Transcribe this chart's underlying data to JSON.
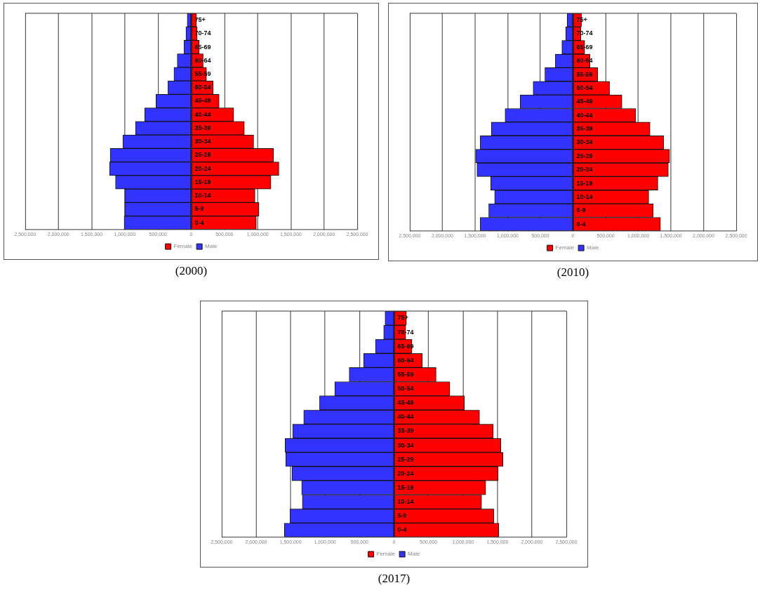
{
  "chart_data": [
    {
      "type": "bar",
      "title": "(2000)",
      "orientation": "horizontal",
      "stacked": true,
      "grid": "x",
      "legend": "bottom",
      "categories": [
        "75+",
        "70-74",
        "65-69",
        "60-64",
        "55-59",
        "50-54",
        "45-49",
        "40-44",
        "35-39",
        "30-34",
        "25-29",
        "20-24",
        "15-19",
        "10-14",
        "5-9",
        "0-4"
      ],
      "series": [
        {
          "name": "Female",
          "color": "#ff0000",
          "values": [
            80000,
            90000,
            120000,
            180000,
            230000,
            330000,
            420000,
            640000,
            800000,
            940000,
            1240000,
            1320000,
            1200000,
            960000,
            1020000,
            980000
          ]
        },
        {
          "name": "Male",
          "color": "#3333ff",
          "values": [
            -60000,
            -80000,
            -110000,
            -210000,
            -260000,
            -350000,
            -530000,
            -700000,
            -840000,
            -1030000,
            -1220000,
            -1230000,
            -1140000,
            -1000000,
            -1000000,
            -1010000
          ]
        }
      ],
      "xlim": [
        -2500000,
        2500000
      ],
      "xticks": [
        {
          "value": -2500000,
          "label": "2,500,000"
        },
        {
          "value": -2000000,
          "label": "2,000,000"
        },
        {
          "value": -1500000,
          "label": "1,500,000"
        },
        {
          "value": -1000000,
          "label": "1,000,000"
        },
        {
          "value": -500000,
          "label": "500,000"
        },
        {
          "value": 0,
          "label": "0"
        },
        {
          "value": 500000,
          "label": "500,000"
        },
        {
          "value": 1000000,
          "label": "1,000,000"
        },
        {
          "value": 1500000,
          "label": "1,500,000"
        },
        {
          "value": 2000000,
          "label": "2,000,000"
        },
        {
          "value": 2500000,
          "label": "2,500,000"
        }
      ]
    },
    {
      "type": "bar",
      "title": "(2010)",
      "orientation": "horizontal",
      "stacked": true,
      "grid": "x",
      "legend": "bottom",
      "categories": [
        "75+",
        "70-74",
        "65-69",
        "60-64",
        "55-59",
        "50-54",
        "45-49",
        "40-44",
        "35-39",
        "30-34",
        "25-29",
        "20-24",
        "15-19",
        "10-14",
        "5-9",
        "0-4"
      ],
      "series": [
        {
          "name": "Female",
          "color": "#ff0000",
          "values": [
            130000,
            120000,
            180000,
            260000,
            380000,
            560000,
            750000,
            960000,
            1180000,
            1390000,
            1480000,
            1460000,
            1300000,
            1160000,
            1230000,
            1340000
          ]
        },
        {
          "name": "Male",
          "color": "#3333ff",
          "values": [
            -90000,
            -110000,
            -170000,
            -270000,
            -430000,
            -610000,
            -810000,
            -1040000,
            -1250000,
            -1420000,
            -1490000,
            -1470000,
            -1260000,
            -1200000,
            -1290000,
            -1420000
          ]
        }
      ],
      "xlim": [
        -2500000,
        2500000
      ],
      "xticks": [
        {
          "value": -2500000,
          "label": "2,500,000"
        },
        {
          "value": -2000000,
          "label": "2,000,000"
        },
        {
          "value": -1500000,
          "label": "1,500,000"
        },
        {
          "value": -1000000,
          "label": "1,000,000"
        },
        {
          "value": -500000,
          "label": "500,000"
        },
        {
          "value": 0,
          "label": "0"
        },
        {
          "value": 500000,
          "label": "500,000"
        },
        {
          "value": 1000000,
          "label": "1,000,000"
        },
        {
          "value": 1500000,
          "label": "1,500,000"
        },
        {
          "value": 2000000,
          "label": "2,000,000"
        },
        {
          "value": 2500000,
          "label": "2,500,000"
        }
      ]
    },
    {
      "type": "bar",
      "title": "(2017)",
      "orientation": "horizontal",
      "stacked": true,
      "grid": "x",
      "legend": "bottom",
      "categories": [
        "75+",
        "70-74",
        "65-69",
        "60-64",
        "55-59",
        "50-54",
        "45-49",
        "40-44",
        "35-39",
        "30-34",
        "25-29",
        "20-24",
        "15-19",
        "10-14",
        "5-9",
        "0-4"
      ],
      "series": [
        {
          "name": "Female",
          "color": "#ff0000",
          "values": [
            180000,
            170000,
            260000,
            410000,
            610000,
            810000,
            1020000,
            1240000,
            1440000,
            1550000,
            1580000,
            1510000,
            1330000,
            1270000,
            1450000,
            1520000
          ]
        },
        {
          "name": "Male",
          "color": "#3333ff",
          "values": [
            -130000,
            -150000,
            -270000,
            -440000,
            -650000,
            -860000,
            -1080000,
            -1310000,
            -1470000,
            -1580000,
            -1570000,
            -1480000,
            -1340000,
            -1330000,
            -1510000,
            -1590000
          ]
        }
      ],
      "xlim": [
        -2500000,
        2500000
      ],
      "xticks": [
        {
          "value": -2500000,
          "label": "2,500,000"
        },
        {
          "value": -2000000,
          "label": "2,000,000"
        },
        {
          "value": -1500000,
          "label": "1,500,000"
        },
        {
          "value": -1000000,
          "label": "1,000,000"
        },
        {
          "value": -500000,
          "label": "500,000"
        },
        {
          "value": 0,
          "label": "0"
        },
        {
          "value": 500000,
          "label": "500,000"
        },
        {
          "value": 1000000,
          "label": "1,000,000"
        },
        {
          "value": 1500000,
          "label": "1,500,000"
        },
        {
          "value": 2000000,
          "label": "2,000,000"
        },
        {
          "value": 2500000,
          "label": "2,500,000"
        }
      ]
    }
  ]
}
